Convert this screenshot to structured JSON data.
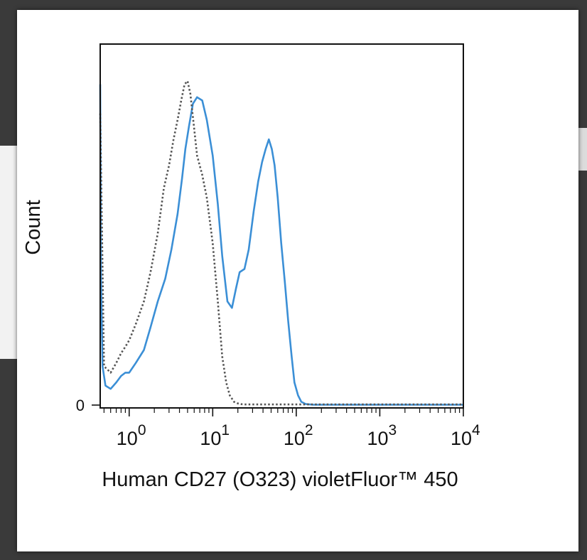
{
  "chart_data": {
    "type": "line",
    "title": "",
    "xlabel": "Human CD27 (O323) violetFluor™ 450",
    "ylabel": "Count",
    "x_scale": "log",
    "xlim": [
      0.45,
      10000
    ],
    "ylim": [
      0,
      1
    ],
    "x_ticks": [
      {
        "value": 1,
        "base": "10",
        "exp": "0"
      },
      {
        "value": 10,
        "base": "10",
        "exp": "1"
      },
      {
        "value": 100,
        "base": "10",
        "exp": "2"
      },
      {
        "value": 1000,
        "base": "10",
        "exp": "3"
      },
      {
        "value": 10000,
        "base": "10",
        "exp": "4"
      }
    ],
    "y_ticks": [
      {
        "value": 0,
        "label": "0"
      }
    ],
    "grid": false,
    "legend": "none",
    "series": [
      {
        "style": "solid",
        "color": "#3b8fd6",
        "x": [
          0.45,
          0.46,
          0.48,
          0.52,
          0.6,
          0.7,
          0.8,
          0.9,
          1.0,
          1.2,
          1.5,
          1.8,
          2.2,
          2.7,
          3.2,
          3.8,
          4.3,
          4.7,
          5.2,
          5.8,
          6.5,
          7.5,
          8.5,
          10,
          11.5,
          13,
          15,
          17,
          19,
          21,
          24,
          27,
          31,
          35,
          39,
          43,
          47,
          51,
          55,
          60,
          66,
          73,
          80,
          88,
          95,
          105,
          115,
          130,
          160,
          250,
          500,
          1000,
          2000,
          5000,
          10000
        ],
        "y": [
          0.99,
          0.4,
          0.12,
          0.06,
          0.05,
          0.07,
          0.09,
          0.1,
          0.1,
          0.13,
          0.17,
          0.24,
          0.32,
          0.39,
          0.48,
          0.59,
          0.7,
          0.79,
          0.86,
          0.93,
          0.95,
          0.94,
          0.88,
          0.77,
          0.62,
          0.46,
          0.32,
          0.3,
          0.36,
          0.41,
          0.42,
          0.48,
          0.6,
          0.69,
          0.75,
          0.79,
          0.82,
          0.79,
          0.74,
          0.64,
          0.5,
          0.38,
          0.26,
          0.15,
          0.07,
          0.03,
          0.01,
          0.003,
          0.001,
          0.001,
          0.001,
          0.001,
          0.001,
          0.001,
          0.001
        ]
      },
      {
        "style": "dotted",
        "color": "#555555",
        "x": [
          0.45,
          0.5,
          0.6,
          0.7,
          0.8,
          0.9,
          1.0,
          1.2,
          1.5,
          1.8,
          2.2,
          2.6,
          3.0,
          3.4,
          3.8,
          4.2,
          4.6,
          5.0,
          5.4,
          5.9,
          6.5,
          7.5,
          8.5,
          10,
          11.5,
          13,
          14.5,
          16,
          18,
          20,
          23,
          27,
          32,
          40,
          60,
          100,
          300,
          1000,
          10000
        ],
        "y": [
          0.9,
          0.12,
          0.1,
          0.13,
          0.16,
          0.18,
          0.2,
          0.25,
          0.32,
          0.41,
          0.53,
          0.67,
          0.74,
          0.82,
          0.88,
          0.94,
          0.99,
          1.0,
          0.96,
          0.87,
          0.77,
          0.71,
          0.64,
          0.5,
          0.32,
          0.15,
          0.07,
          0.03,
          0.01,
          0.005,
          0.002,
          0.002,
          0.002,
          0.002,
          0.002,
          0.002,
          0.002,
          0.002,
          0.002
        ]
      }
    ]
  }
}
